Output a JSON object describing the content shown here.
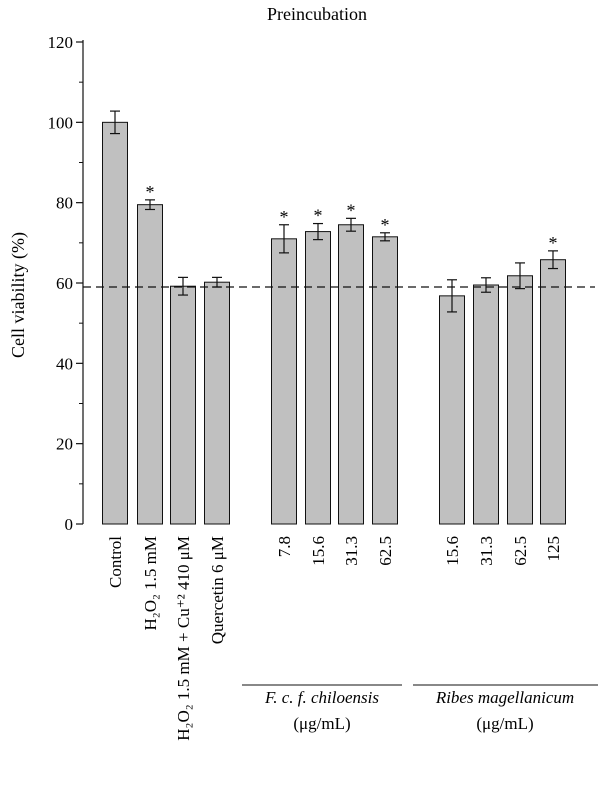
{
  "chart_data": {
    "type": "bar",
    "title": "Preincubation",
    "ylabel": "Cell viability (%)",
    "xlabel": "",
    "ylim": [
      0,
      120
    ],
    "yticks": [
      0,
      20,
      40,
      60,
      80,
      100,
      120
    ],
    "reference_line": 59,
    "bar_color": "#c0c0c0",
    "categories": [
      {
        "label": "Control",
        "value": 100,
        "error": 2.8,
        "significant": false
      },
      {
        "label": "H₂O₂ 1.5 mM",
        "value": 79.5,
        "error": 1.2,
        "significant": true
      },
      {
        "label": "H₂O₂ 1.5 mM + Cu⁺² 410 μM",
        "value": 59.2,
        "error": 2.2,
        "significant": false
      },
      {
        "label": "Quercetin 6 μM",
        "value": 60.2,
        "error": 1.2,
        "significant": false
      },
      {
        "label": "7.8",
        "value": 71,
        "error": 3.5,
        "significant": true
      },
      {
        "label": "15.6",
        "value": 72.8,
        "error": 2.0,
        "significant": true
      },
      {
        "label": "31.3",
        "value": 74.5,
        "error": 1.6,
        "significant": true
      },
      {
        "label": "62.5",
        "value": 71.5,
        "error": 1.0,
        "significant": true
      },
      {
        "label": "15.6",
        "value": 56.8,
        "error": 4.0,
        "significant": false
      },
      {
        "label": "31.3",
        "value": 59.5,
        "error": 1.8,
        "significant": false
      },
      {
        "label": "62.5",
        "value": 61.8,
        "error": 3.2,
        "significant": false
      },
      {
        "label": "125",
        "value": 65.8,
        "error": 2.2,
        "significant": true
      }
    ],
    "significance_marker": "*",
    "groups": [
      {
        "name": "F. c. f. chiloensis",
        "unit": "(μg/mL)"
      },
      {
        "name": "Ribes magellanicum",
        "unit": "(μg/mL)"
      }
    ]
  }
}
